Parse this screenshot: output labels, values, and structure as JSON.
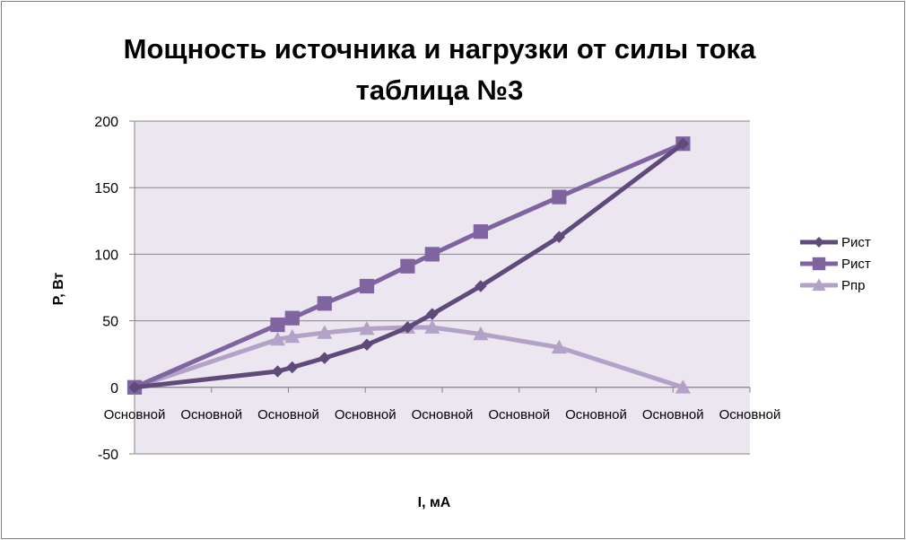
{
  "chart_data": {
    "type": "line",
    "title": [
      "Мощность источника и нагрузки от силы тока",
      "таблица №3"
    ],
    "xlabel": "I, мА",
    "ylabel": "P, Вт",
    "ylim": [
      -50,
      200
    ],
    "yticks": [
      -50,
      0,
      50,
      100,
      150,
      200
    ],
    "x_tick_labels": [
      "Основной",
      "Основной",
      "Основной",
      "Основной",
      "Основной",
      "Основной",
      "Основной",
      "Основной",
      "Основной"
    ],
    "x_range": [
      0,
      8
    ],
    "grid": "horizontal",
    "legend_position": "right",
    "series": [
      {
        "name": "Рист",
        "marker": "diamond",
        "color": "#604a7b",
        "points": [
          [
            0,
            0
          ],
          [
            1.86,
            12
          ],
          [
            2.05,
            15
          ],
          [
            2.47,
            22
          ],
          [
            3.02,
            32
          ],
          [
            3.55,
            45
          ],
          [
            3.87,
            55
          ],
          [
            4.5,
            76
          ],
          [
            5.52,
            113
          ],
          [
            7.13,
            183
          ]
        ]
      },
      {
        "name": "Рист",
        "marker": "square",
        "color": "#8064a2",
        "points": [
          [
            0,
            0
          ],
          [
            1.86,
            47
          ],
          [
            2.05,
            52
          ],
          [
            2.47,
            63
          ],
          [
            3.02,
            76
          ],
          [
            3.55,
            91
          ],
          [
            3.87,
            100
          ],
          [
            4.5,
            117
          ],
          [
            5.52,
            143
          ],
          [
            7.13,
            183
          ]
        ]
      },
      {
        "name": "Рпр",
        "marker": "triangle",
        "color": "#b3a2c7",
        "points": [
          [
            0,
            0
          ],
          [
            1.86,
            36
          ],
          [
            2.05,
            38
          ],
          [
            2.47,
            41
          ],
          [
            3.02,
            44
          ],
          [
            3.55,
            45
          ],
          [
            3.87,
            45
          ],
          [
            4.5,
            40
          ],
          [
            5.52,
            30
          ],
          [
            7.13,
            0
          ]
        ]
      }
    ]
  }
}
